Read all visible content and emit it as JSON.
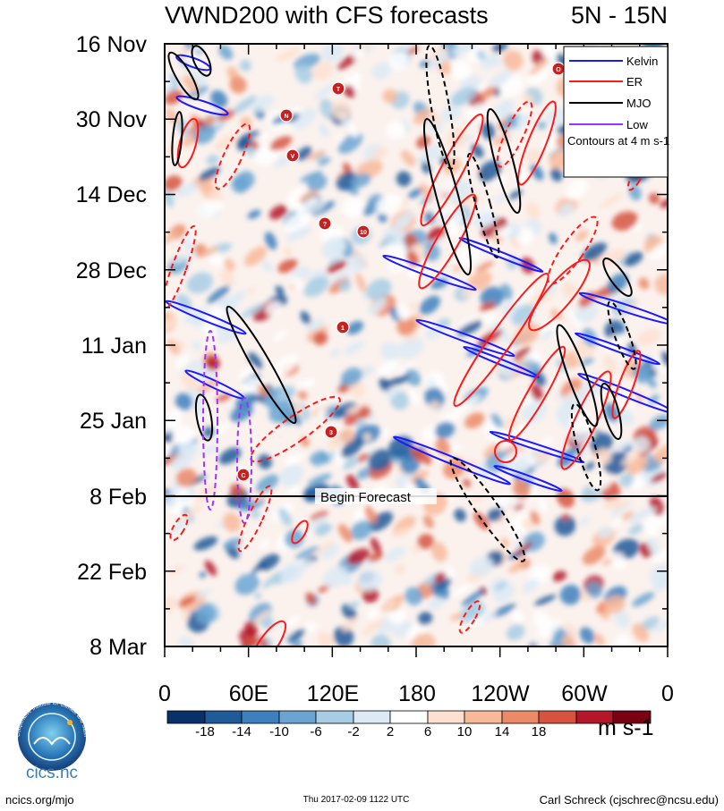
{
  "chart_data": {
    "type": "heatmap",
    "title": "VWND200 with CFS forecasts",
    "region": "5N - 15N",
    "y_ticks": [
      "16 Nov",
      "30 Nov",
      "14 Dec",
      "28 Dec",
      "11 Jan",
      "25 Jan",
      "8 Feb",
      "22 Feb",
      "8 Mar"
    ],
    "x_ticks": [
      "0",
      "60E",
      "120E",
      "180",
      "120W",
      "60W",
      "0"
    ],
    "x_range_deg_east": [
      0,
      360
    ],
    "forecast_marker": {
      "label": "Begin Forecast",
      "date": "8 Feb"
    },
    "legend": [
      {
        "name": "Kelvin",
        "color": "#1a1aff"
      },
      {
        "name": "ER",
        "color": "#ff1a1a"
      },
      {
        "name": "MJO",
        "color": "#000000"
      },
      {
        "name": "Low",
        "color": "#9933ff"
      }
    ],
    "contour_note": "Contours at 4 m s-1",
    "colorbar": {
      "labels": [
        "-18",
        "-14",
        "-10",
        "-6",
        "-2",
        "2",
        "6",
        "10",
        "14",
        "18"
      ],
      "units": "m s-1",
      "colors": [
        "#08306b",
        "#1f5a99",
        "#3d80bd",
        "#6aa4d2",
        "#a7cce4",
        "#dceaf5",
        "#ffffff",
        "#fde0d0",
        "#f8b89a",
        "#ec8a68",
        "#d6533f",
        "#b5172a",
        "#7a0014"
      ]
    },
    "storm_labels": [
      "O",
      "T",
      "N",
      "V",
      "?",
      "10",
      "1",
      "3",
      "C"
    ]
  },
  "footer": {
    "left": "ncics.org/mjo",
    "center": "Thu 2017-02-09 1122 UTC",
    "right": "Carl Schreck (cjschrec@ncsu.edu)"
  },
  "logo": {
    "text": "cics.nc",
    "ring_text": "Cooperative Institute for Climate and Satellites"
  }
}
